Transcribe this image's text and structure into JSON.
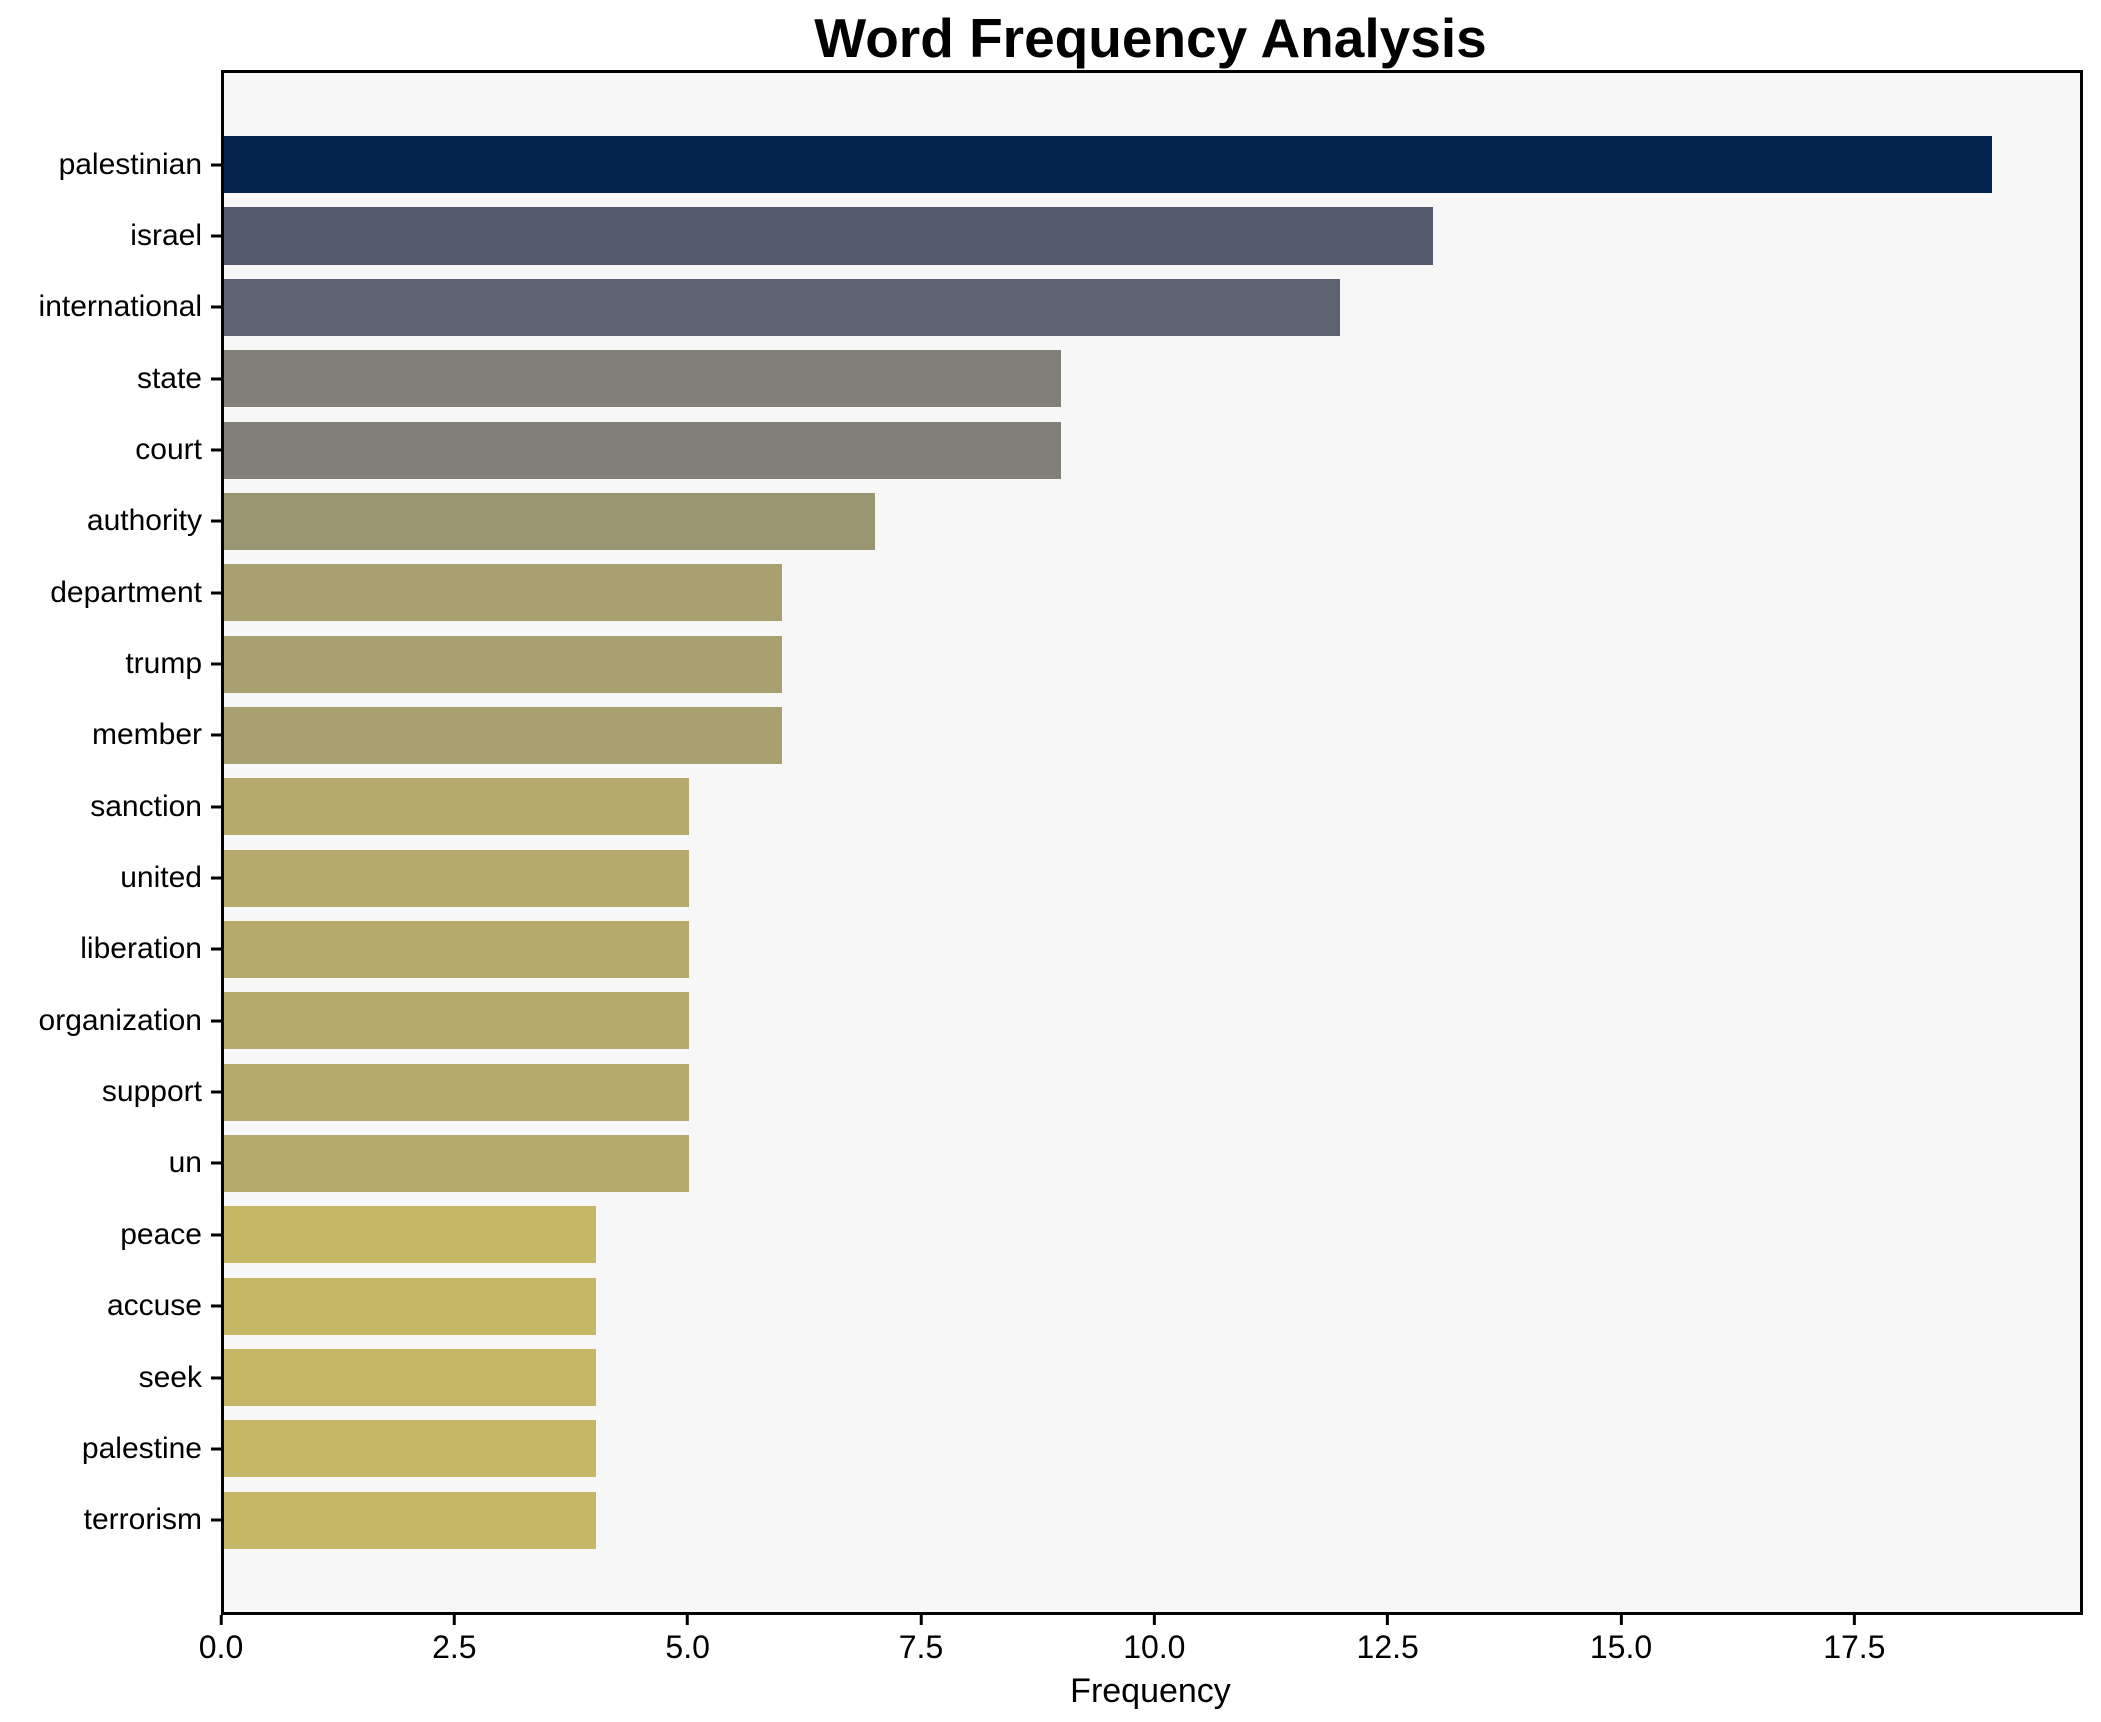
{
  "chart_data": {
    "type": "bar",
    "orientation": "horizontal",
    "title": "Word Frequency Analysis",
    "xlabel": "Frequency",
    "ylabel": "",
    "categories": [
      "palestinian",
      "israel",
      "international",
      "state",
      "court",
      "authority",
      "department",
      "trump",
      "member",
      "sanction",
      "united",
      "liberation",
      "organization",
      "support",
      "un",
      "peace",
      "accuse",
      "seek",
      "palestine",
      "terrorism"
    ],
    "values": [
      19,
      13,
      12,
      9,
      9,
      7,
      6,
      6,
      6,
      5,
      5,
      5,
      5,
      5,
      5,
      4,
      4,
      4,
      4,
      4
    ],
    "bar_colors": [
      "#03244f",
      "#535b6d",
      "#5d6270",
      "#827f78",
      "#827f78",
      "#9b9672",
      "#a9a06f",
      "#a9a06f",
      "#a9a06f",
      "#b5aa6b",
      "#b5aa6b",
      "#b5aa6b",
      "#b5aa6b",
      "#b5aa6b",
      "#b5aa6b",
      "#c6b766",
      "#c6b766",
      "#c6b766",
      "#c6b766",
      "#c6b766"
    ],
    "x_ticks": [
      "0.0",
      "2.5",
      "5.0",
      "7.5",
      "10.0",
      "12.5",
      "15.0",
      "17.5"
    ],
    "x_tick_values": [
      0,
      2.5,
      5,
      7.5,
      10,
      12.5,
      15,
      17.5
    ],
    "xlim": [
      0,
      19.95
    ],
    "grid": false,
    "legend": "none",
    "colormap": "cividis-by-value",
    "plot_background": "#f7f7f8",
    "figure_background": "#ffffff",
    "spine_color": "#000000"
  }
}
